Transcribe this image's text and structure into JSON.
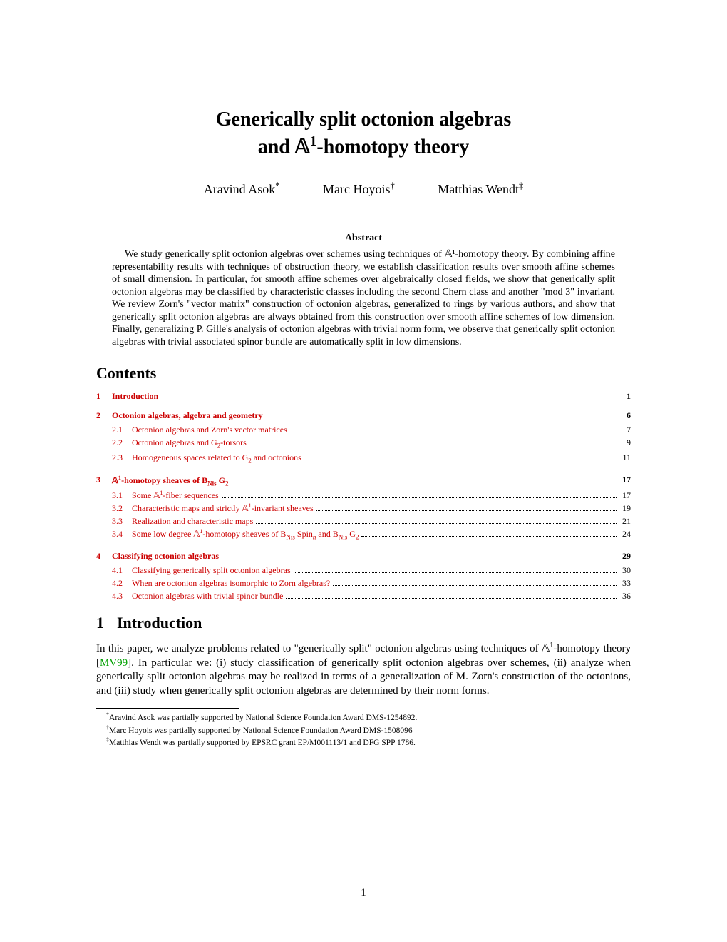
{
  "title_line1": "Generically split octonion algebras",
  "title_line2_prefix": "and ",
  "title_line2_math": "𝔸",
  "title_line2_sup": "1",
  "title_line2_suffix": "-homotopy theory",
  "authors": [
    {
      "name": "Aravind Asok",
      "mark": "*"
    },
    {
      "name": "Marc Hoyois",
      "mark": "†"
    },
    {
      "name": "Matthias Wendt",
      "mark": "‡"
    }
  ],
  "abstract_heading": "Abstract",
  "abstract_body": "We study generically split octonion algebras over schemes using techniques of 𝔸¹-homotopy theory. By combining affine representability results with techniques of obstruction theory, we establish classification results over smooth affine schemes of small dimension. In particular, for smooth affine schemes over algebraically closed fields, we show that generically split octonion algebras may be classified by characteristic classes including the second Chern class and another \"mod 3\" invariant. We review Zorn's \"vector matrix\" construction of octonion algebras, generalized to rings by various authors, and show that generically split octonion algebras are always obtained from this construction over smooth affine schemes of low dimension. Finally, generalizing P. Gille's analysis of octonion algebras with trivial norm form, we observe that generically split octonion algebras with trivial associated spinor bundle are automatically split in low dimensions.",
  "contents_heading": "Contents",
  "toc": [
    {
      "num": "1",
      "label": "Introduction",
      "page": "1",
      "subs": []
    },
    {
      "num": "2",
      "label": "Octonion algebras, algebra and geometry",
      "page": "6",
      "subs": [
        {
          "num": "2.1",
          "label": "Octonion algebras and Zorn's vector matrices",
          "page": "7"
        },
        {
          "num": "2.2",
          "label_html": "Octonion algebras and G<span class=\"sub\">2</span>-torsors",
          "page": "9"
        },
        {
          "num": "2.3",
          "label_html": "Homogeneous spaces related to G<span class=\"sub\">2</span> and octonions",
          "page": "11"
        }
      ]
    },
    {
      "num": "3",
      "label_html": "<span class=\"blackboard\">𝔸</span><sup>1</sup>-homotopy sheaves of <span class=\"rm\">B</span><span class=\"sub rm\">Nis</span> G<span class=\"sub\">2</span>",
      "page": "17",
      "subs": [
        {
          "num": "3.1",
          "label_html": "Some <span class=\"blackboard\">𝔸</span><sup>1</sup>-fiber sequences",
          "page": "17"
        },
        {
          "num": "3.2",
          "label_html": "Characteristic maps and strictly <span class=\"blackboard\">𝔸</span><sup>1</sup>-invariant sheaves",
          "page": "19"
        },
        {
          "num": "3.3",
          "label": "Realization and characteristic maps",
          "page": "21"
        },
        {
          "num": "3.4",
          "label_html": "Some low degree <span class=\"blackboard\">𝔸</span><sup>1</sup>-homotopy sheaves of <span class=\"rm\">B</span><span class=\"sub rm\">Nis</span> Spin<span class=\"sub\"><i>n</i></span> and <span class=\"rm\">B</span><span class=\"sub rm\">Nis</span> G<span class=\"sub\">2</span>",
          "page": "24"
        }
      ]
    },
    {
      "num": "4",
      "label": "Classifying octonion algebras",
      "page": "29",
      "subs": [
        {
          "num": "4.1",
          "label": "Classifying generically split octonion algebras",
          "page": "30"
        },
        {
          "num": "4.2",
          "label": "When are octonion algebras isomorphic to Zorn algebras?",
          "page": "33"
        },
        {
          "num": "4.3",
          "label": "Octonion algebras with trivial spinor bundle",
          "page": "36"
        }
      ]
    }
  ],
  "section1_num": "1",
  "section1_title": "Introduction",
  "intro_paragraph_html": "In this paper, we analyze problems related to \"generically split\" octonion algebras using techniques of <span class=\"blackboard\">𝔸</span><sup>1</sup>-homotopy theory [<span class=\"citation\">MV99</span>]. In particular we: (i) study classification of generically split octonion algebras over schemes, (ii) analyze when generically split octonion algebras may be realized in terms of a generalization of M. Zorn's construction of the octonions, and (iii) study when generically split octonion algebras are determined by their norm forms.",
  "footnotes": [
    {
      "mark": "*",
      "text": "Aravind Asok was partially supported by National Science Foundation Award DMS-1254892."
    },
    {
      "mark": "†",
      "text": "Marc Hoyois was partially supported by National Science Foundation Award DMS-1508096"
    },
    {
      "mark": "‡",
      "text": "Matthias Wendt was partially supported by EPSRC grant EP/M001113/1 and DFG SPP 1786."
    }
  ],
  "page_number": "1",
  "colors": {
    "link": "#cc0000",
    "citation": "#00a000",
    "text": "#000000",
    "background": "#ffffff"
  }
}
